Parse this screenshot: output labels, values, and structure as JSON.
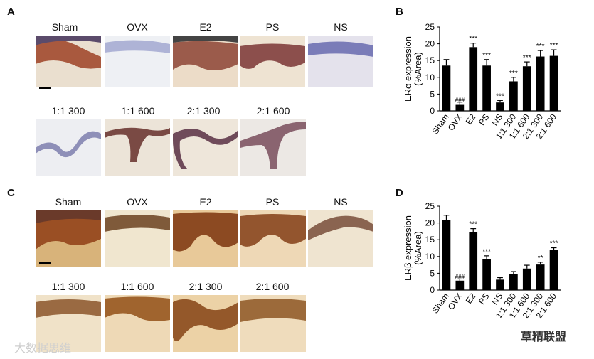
{
  "panels": {
    "A": {
      "letter": "A",
      "labels_row1": [
        "Sham",
        "OVX",
        "E2",
        "PS",
        "NS"
      ],
      "labels_row2": [
        "1:1 300",
        "1:1 600",
        "2:1 300",
        "2:1 600"
      ]
    },
    "B": {
      "letter": "B"
    },
    "C": {
      "letter": "C",
      "labels_row1": [
        "Sham",
        "OVX",
        "E2",
        "PS",
        "NS"
      ],
      "labels_row2": [
        "1:1 300",
        "1:1 600",
        "2:1 300",
        "2:1 600"
      ]
    },
    "D": {
      "letter": "D"
    }
  },
  "chart_data": [
    {
      "type": "bar",
      "ylabel_line1": "ERα expression",
      "ylabel_line2": "(%Area)",
      "categories": [
        "Sham",
        "OVX",
        "E2",
        "PS",
        "NS",
        "1:1 300",
        "1:1 600",
        "2:1 300",
        "2:1 600"
      ],
      "values": [
        13.5,
        2.0,
        19.0,
        13.5,
        2.5,
        8.8,
        13.3,
        16.2,
        16.4
      ],
      "errors": [
        1.8,
        0.6,
        1.2,
        1.8,
        0.6,
        1.2,
        1.3,
        1.8,
        1.8
      ],
      "annotations": [
        "",
        "###",
        "***",
        "***",
        "***",
        "***",
        "***",
        "***",
        "***"
      ],
      "ylim": [
        0,
        25
      ],
      "yticks": [
        0,
        5,
        10,
        15,
        20,
        25
      ]
    },
    {
      "type": "bar",
      "ylabel_line1": "ERβ expression",
      "ylabel_line2": "(%Area)",
      "categories": [
        "Sham",
        "OVX",
        "E2",
        "PS",
        "NS",
        "1:1 300",
        "1:1 600",
        "2:1 300",
        "2:1 600"
      ],
      "values": [
        20.8,
        2.8,
        17.3,
        9.3,
        3.1,
        4.8,
        6.4,
        7.6,
        11.9
      ],
      "errors": [
        1.5,
        0.5,
        1.0,
        0.9,
        0.6,
        0.7,
        1.0,
        0.7,
        0.7
      ],
      "annotations": [
        "",
        "###",
        "***",
        "***",
        "",
        "",
        "",
        "**",
        "***"
      ],
      "ylim": [
        0,
        25
      ],
      "yticks": [
        0,
        5,
        10,
        15,
        20,
        25
      ]
    }
  ],
  "watermarks": {
    "left": "大数据思维",
    "right": "草精联盟"
  },
  "colors": {
    "bar": "#000000",
    "error_bar": "#000000"
  }
}
